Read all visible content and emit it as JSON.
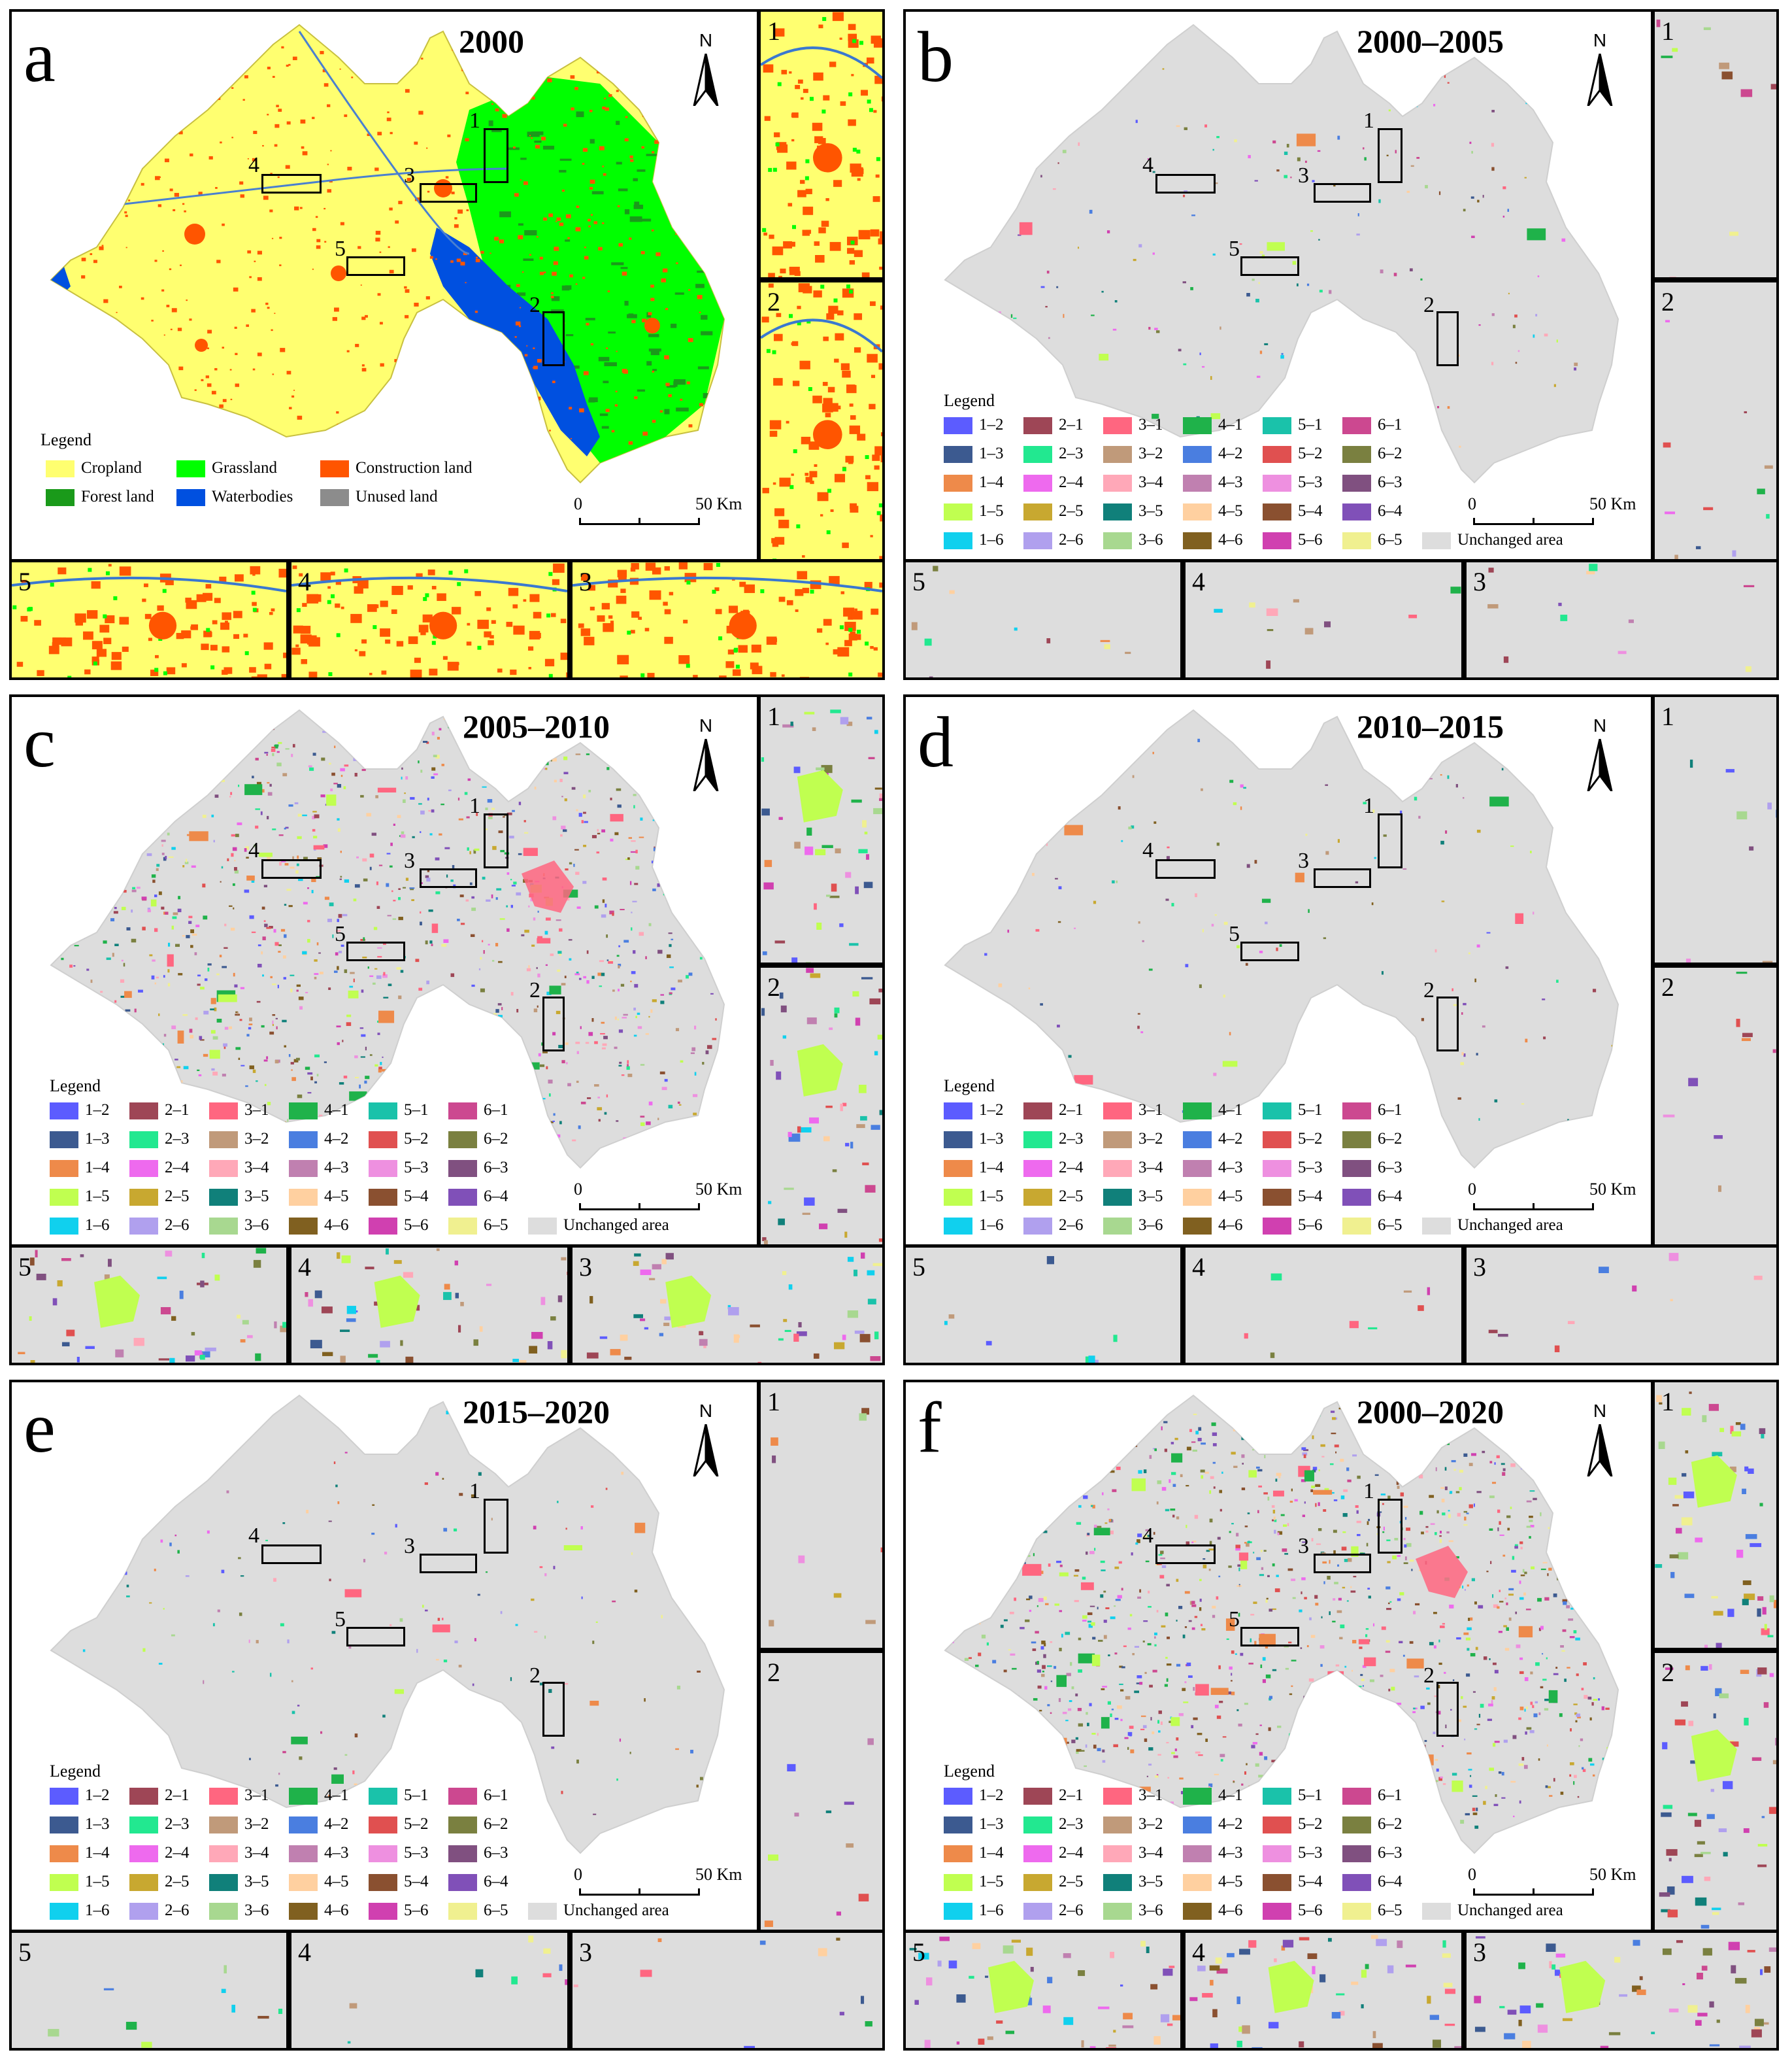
{
  "panels": [
    {
      "letter": "a",
      "period": "2000",
      "kind": "landuse"
    },
    {
      "letter": "b",
      "period": "2000–2005",
      "kind": "change",
      "density": 0.12
    },
    {
      "letter": "c",
      "period": "2005–2010",
      "kind": "change",
      "density": 0.9
    },
    {
      "letter": "d",
      "period": "2010–2015",
      "kind": "change",
      "density": 0.08
    },
    {
      "letter": "e",
      "period": "2015–2020",
      "kind": "change",
      "density": 0.1
    },
    {
      "letter": "f",
      "period": "2000–2020",
      "kind": "change",
      "density": 1.0
    }
  ],
  "north_label": "N",
  "scale": {
    "start": "0",
    "end": "50 Km"
  },
  "legend_title": "Legend",
  "zone_labels": [
    "1",
    "2",
    "3",
    "4",
    "5"
  ],
  "landuse_legend": [
    {
      "label": "Cropland",
      "color": "#ffff70"
    },
    {
      "label": "Grassland",
      "color": "#00ff00"
    },
    {
      "label": "Construction land",
      "color": "#ff5500"
    },
    {
      "label": "Forest land",
      "color": "#1a9a1a"
    },
    {
      "label": "Waterbodies",
      "color": "#0050e0"
    },
    {
      "label": "Unused land",
      "color": "#8c8c8c"
    }
  ],
  "change_legend": [
    {
      "label": "1–2",
      "color": "#5c5cff"
    },
    {
      "label": "2–1",
      "color": "#9e4656"
    },
    {
      "label": "3–1",
      "color": "#ff6680"
    },
    {
      "label": "4–1",
      "color": "#1fb24a"
    },
    {
      "label": "5–1",
      "color": "#1ac2aa"
    },
    {
      "label": "6–1",
      "color": "#cc4890"
    },
    {
      "label": "1–3",
      "color": "#3c5a90"
    },
    {
      "label": "2–3",
      "color": "#22e890"
    },
    {
      "label": "3–2",
      "color": "#c09a7a"
    },
    {
      "label": "4–2",
      "color": "#4a7ee0"
    },
    {
      "label": "5–2",
      "color": "#e05050"
    },
    {
      "label": "6–2",
      "color": "#7a8040"
    },
    {
      "label": "1–4",
      "color": "#ee8a4a"
    },
    {
      "label": "2–4",
      "color": "#ee6aee"
    },
    {
      "label": "3–4",
      "color": "#ffa8b8"
    },
    {
      "label": "4–3",
      "color": "#c080b0"
    },
    {
      "label": "5–3",
      "color": "#ee90e0"
    },
    {
      "label": "6–3",
      "color": "#805080"
    },
    {
      "label": "1–5",
      "color": "#c0ff50"
    },
    {
      "label": "2–5",
      "color": "#c8a830"
    },
    {
      "label": "3–5",
      "color": "#10807a"
    },
    {
      "label": "4–5",
      "color": "#ffd0a0"
    },
    {
      "label": "5–4",
      "color": "#8a5030"
    },
    {
      "label": "6–4",
      "color": "#8050b8"
    },
    {
      "label": "1–6",
      "color": "#10d0ee"
    },
    {
      "label": "2–6",
      "color": "#b0a0ee"
    },
    {
      "label": "3–6",
      "color": "#a8d890"
    },
    {
      "label": "4–6",
      "color": "#806020"
    },
    {
      "label": "5–6",
      "color": "#d040b0"
    },
    {
      "label": "6–5",
      "color": "#f0f090"
    },
    {
      "label": "Unchanged area",
      "color": "#dddddd"
    }
  ]
}
